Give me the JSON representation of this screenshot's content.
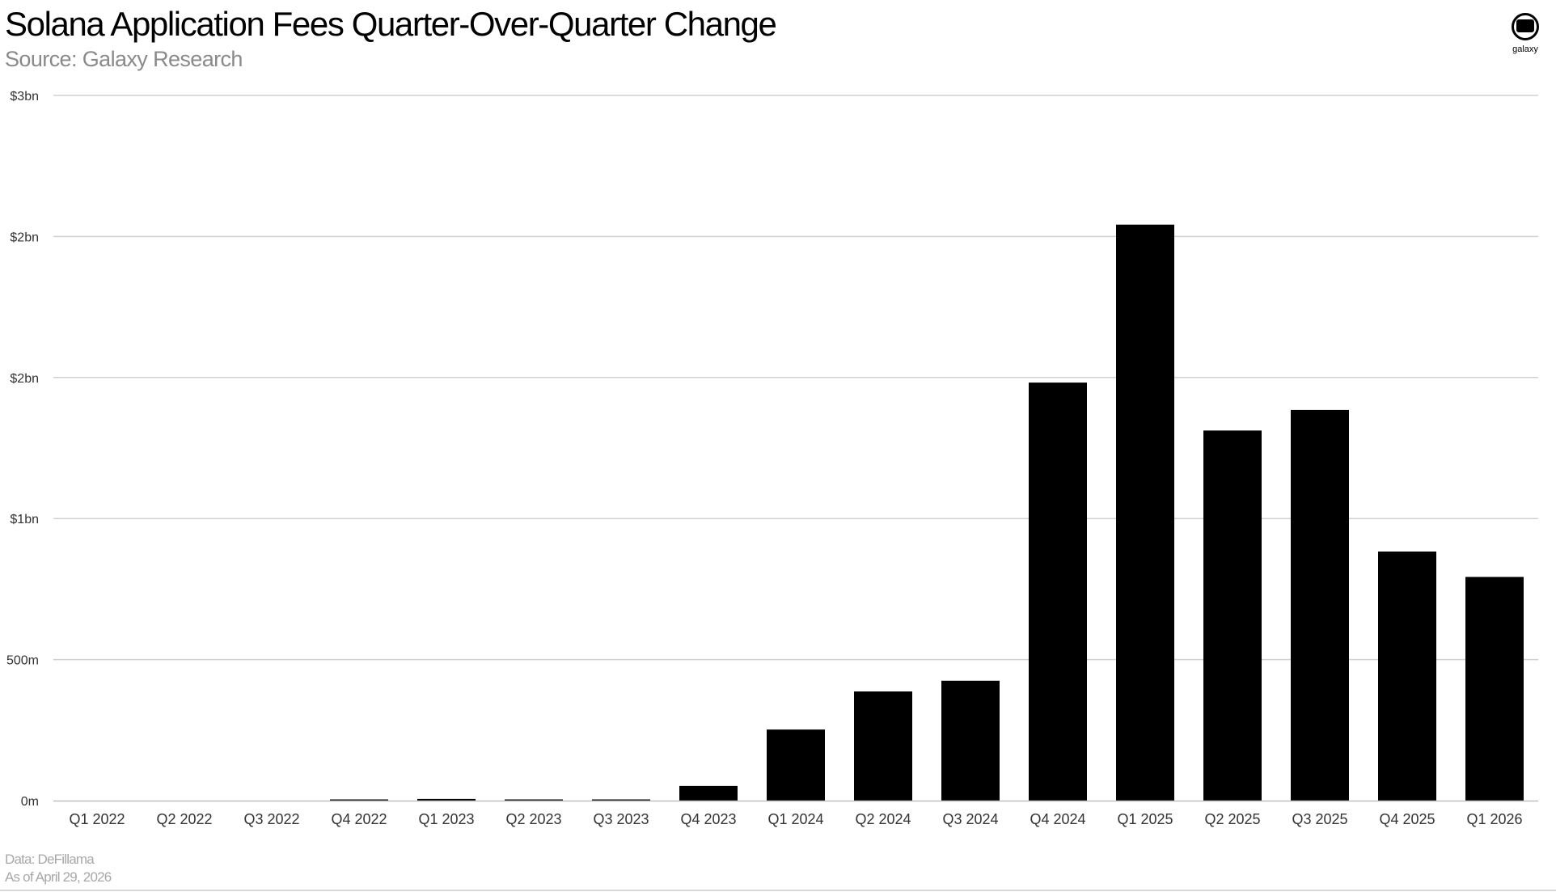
{
  "header": {
    "title": "Solana Application Fees Quarter-Over-Quarter Change",
    "subtitle": "Source: Galaxy Research"
  },
  "logo": {
    "icon": "galaxy-logo-icon",
    "text": "galaxy"
  },
  "footer": {
    "data_source": "Data: DeFillama",
    "as_of": "As of April 29, 2026"
  },
  "colors": {
    "bar": "#000000",
    "grid": "#d0d0d0",
    "axis_text": "#333333"
  },
  "chart_data": {
    "type": "bar",
    "title": "Solana Application Fees Quarter-Over-Quarter Change",
    "subtitle": "Source: Galaxy Research",
    "xlabel": "",
    "ylabel": "",
    "ylim": [
      0,
      2500000000
    ],
    "y_ticks": [
      {
        "value": 0,
        "label": "0m"
      },
      {
        "value": 500000000,
        "label": "500m"
      },
      {
        "value": 1000000000,
        "label": "$1bn"
      },
      {
        "value": 1500000000,
        "label": "$2bn"
      },
      {
        "value": 2000000000,
        "label": "$2bn"
      },
      {
        "value": 2500000000,
        "label": "$3bn"
      }
    ],
    "grid": true,
    "legend": "none",
    "categories": [
      "Q1 2022",
      "Q2 2022",
      "Q3 2022",
      "Q4 2022",
      "Q1 2023",
      "Q2 2023",
      "Q3 2023",
      "Q4 2023",
      "Q1 2024",
      "Q2 2024",
      "Q3 2024",
      "Q4 2024",
      "Q1 2025",
      "Q2 2025",
      "Q3 2025",
      "Q4 2025",
      "Q1 2026"
    ],
    "values": [
      0,
      0,
      0,
      3000000,
      6000000,
      3000000,
      3000000,
      52000000,
      252000000,
      387000000,
      425000000,
      1482000000,
      2042000000,
      1312000000,
      1385000000,
      883000000,
      793000000
    ]
  }
}
